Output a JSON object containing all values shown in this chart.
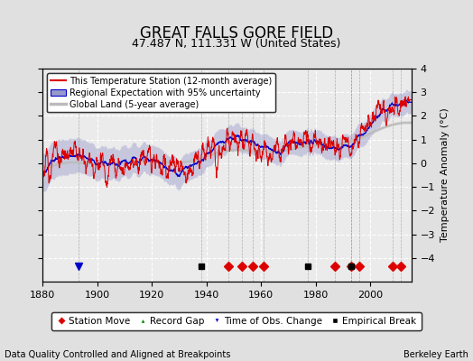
{
  "title": "GREAT FALLS GORE FIELD",
  "subtitle": "47.487 N, 111.331 W (United States)",
  "ylabel": "Temperature Anomaly (°C)",
  "xlabel_left": "Data Quality Controlled and Aligned at Breakpoints",
  "xlabel_right": "Berkeley Earth",
  "ylim": [
    -5.0,
    4.0
  ],
  "xlim": [
    1880,
    2015
  ],
  "yticks": [
    -4,
    -3,
    -2,
    -1,
    0,
    1,
    2,
    3,
    4
  ],
  "xticks": [
    1880,
    1900,
    1920,
    1940,
    1960,
    1980,
    2000
  ],
  "background_color": "#e0e0e0",
  "plot_bg_color": "#ebebeb",
  "grid_color": "#ffffff",
  "red_color": "#dd0000",
  "blue_color": "#0000cc",
  "blue_fill_color": "#9999cc",
  "gray_color": "#bbbbbb",
  "station_move_times": [
    1948,
    1953,
    1957,
    1961,
    1987,
    1993,
    1996,
    2008,
    2011
  ],
  "time_obs_change_times": [
    1893
  ],
  "empirical_break_times": [
    1938,
    1977,
    1993
  ],
  "legend_items": [
    "This Temperature Station (12-month average)",
    "Regional Expectation with 95% uncertainty",
    "Global Land (5-year average)"
  ],
  "title_fontsize": 12,
  "subtitle_fontsize": 9,
  "tick_fontsize": 8,
  "ylabel_fontsize": 8
}
